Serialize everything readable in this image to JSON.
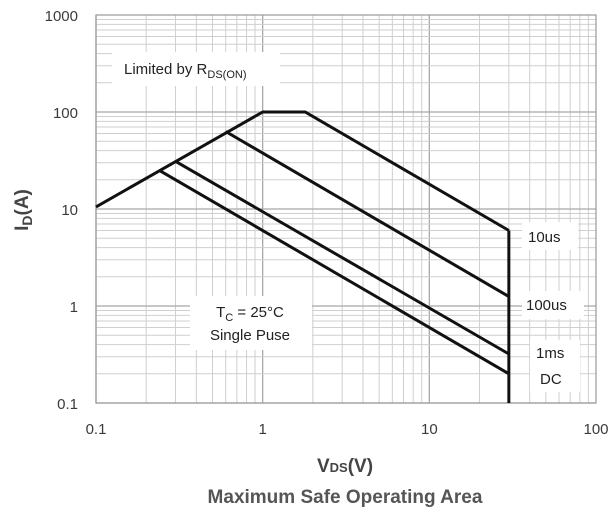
{
  "chart_data": {
    "type": "line",
    "title": "Maximum Safe Operating Area",
    "xlabel": {
      "main": "V",
      "sub": "DS",
      "tail": "(V)"
    },
    "ylabel": {
      "main": "I",
      "sub": "D",
      "tail": "(A)"
    },
    "xscale": "log",
    "yscale": "log",
    "xlim": [
      0.1,
      100
    ],
    "ylim": [
      0.1,
      1000
    ],
    "grid": true,
    "x_ticks": [
      "0.1",
      "1",
      "10",
      "100"
    ],
    "y_ticks": [
      "0.1",
      "1",
      "10",
      "100",
      "1000"
    ],
    "series": [
      {
        "name": "10us",
        "x": [
          0.1,
          1.0,
          1.8,
          30
        ],
        "y": [
          10.5,
          100,
          100,
          6.0
        ]
      },
      {
        "name": "100us",
        "x": [
          0.6,
          30
        ],
        "y": [
          63,
          1.25
        ]
      },
      {
        "name": "1ms",
        "x": [
          0.3,
          30
        ],
        "y": [
          31,
          0.32
        ]
      },
      {
        "name": "DC",
        "x": [
          0.24,
          30
        ],
        "y": [
          25,
          0.2
        ]
      }
    ],
    "vertical_limit": {
      "x": 30,
      "y": [
        0.1,
        6.0
      ]
    },
    "annotations": {
      "rds": {
        "main": "Limited by R",
        "sub": "DS(ON)"
      },
      "conditions": {
        "line1_main": "T",
        "line1_sub": "C",
        "line1_tail": " = 25°C",
        "line2": "Single Puse"
      }
    }
  }
}
